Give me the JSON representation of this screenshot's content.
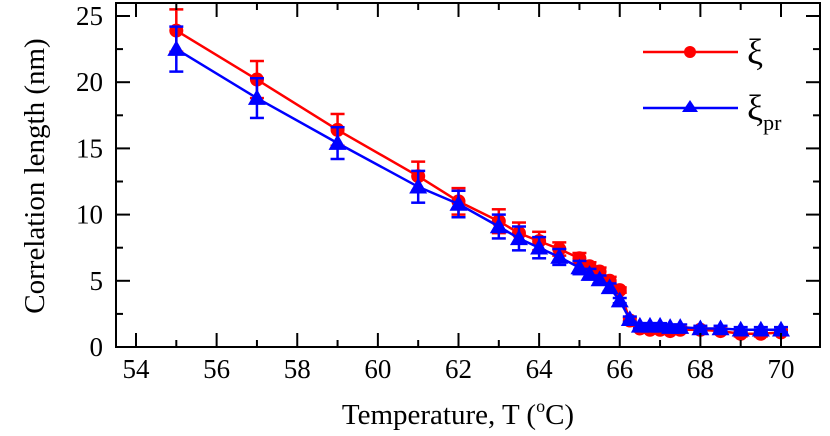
{
  "chart_data": {
    "type": "line",
    "title": "",
    "xlabel": "Temperature, T (°C)",
    "xlabel_parts": {
      "main": "Temperature, T (",
      "sup": "o",
      "tail": "C)"
    },
    "ylabel": "Correlation length (nm)",
    "xlim": [
      53.5,
      71.5
    ],
    "ylim": [
      0,
      26
    ],
    "x_ticks": [
      54,
      56,
      58,
      60,
      62,
      64,
      66,
      68,
      70
    ],
    "x_tick_labels": [
      "54",
      "56",
      "58",
      "60",
      "62",
      "64",
      "66",
      "68",
      "70"
    ],
    "x_minor_ticks": [
      55,
      57,
      59,
      61,
      63,
      65,
      67,
      69,
      71
    ],
    "y_ticks": [
      0,
      5,
      10,
      15,
      20,
      25
    ],
    "y_tick_labels": [
      "0",
      "5",
      "10",
      "15",
      "20",
      "25"
    ],
    "y_minor_ticks": [
      2.5,
      7.5,
      12.5,
      17.5,
      22.5
    ],
    "grid": false,
    "legend_position": "upper right",
    "series": [
      {
        "name": "ξ",
        "legend_main": "ξ",
        "legend_sub": "",
        "color": "#ff0000",
        "marker": "circle",
        "x": [
          55,
          57,
          59,
          61,
          62,
          63,
          63.5,
          64,
          64.5,
          65,
          65.25,
          65.5,
          65.75,
          66,
          66.25,
          66.5,
          66.75,
          67,
          67.25,
          67.5,
          68,
          68.5,
          69,
          69.5,
          70
        ],
        "y": [
          23.9,
          20.2,
          16.4,
          12.9,
          11.0,
          9.5,
          8.6,
          8.0,
          7.4,
          6.7,
          6.1,
          5.7,
          5.0,
          4.3,
          2.0,
          1.4,
          1.3,
          1.3,
          1.2,
          1.3,
          1.3,
          1.2,
          1.0,
          1.0,
          1.1
        ],
        "err": [
          1.6,
          1.4,
          1.2,
          1.1,
          1.0,
          0.9,
          0.8,
          0.7,
          0.5,
          0.4,
          0.3,
          0.3,
          0.3,
          0.2,
          0.2,
          0.2,
          0.2,
          0.2,
          0.2,
          0.2,
          0.2,
          0.2,
          0.2,
          0.2,
          0.2
        ]
      },
      {
        "name": "ξpr",
        "legend_main": "ξ",
        "legend_sub": "pr",
        "color": "#0000ff",
        "marker": "triangle",
        "x": [
          55,
          57,
          59,
          61,
          62,
          63,
          63.5,
          64,
          64.5,
          65,
          65.25,
          65.5,
          65.75,
          66,
          66.25,
          66.5,
          66.75,
          67,
          67.25,
          67.5,
          68,
          68.5,
          69,
          69.5,
          70
        ],
        "y": [
          22.5,
          18.8,
          15.4,
          12.1,
          10.8,
          9.1,
          8.2,
          7.5,
          6.8,
          6.0,
          5.5,
          5.1,
          4.5,
          3.5,
          2.1,
          1.6,
          1.6,
          1.6,
          1.5,
          1.5,
          1.4,
          1.4,
          1.3,
          1.3,
          1.3
        ],
        "err": [
          1.7,
          1.5,
          1.2,
          1.2,
          1.0,
          0.9,
          0.9,
          0.8,
          0.6,
          0.5,
          0.4,
          0.3,
          0.3,
          0.2,
          0.2,
          0.2,
          0.2,
          0.2,
          0.2,
          0.2,
          0.2,
          0.2,
          0.2,
          0.2,
          0.2
        ]
      }
    ]
  }
}
